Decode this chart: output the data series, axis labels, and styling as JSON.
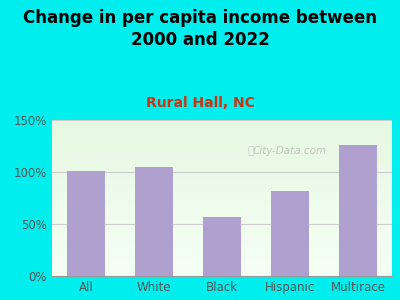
{
  "title": "Change in per capita income between\n2000 and 2022",
  "subtitle": "Rural Hall, NC",
  "categories": [
    "All",
    "White",
    "Black",
    "Hispanic",
    "Multirace"
  ],
  "values": [
    101,
    105,
    57,
    82,
    126
  ],
  "bar_color": "#b0a0d0",
  "title_fontsize": 12,
  "subtitle_fontsize": 10,
  "subtitle_color": "#cc3311",
  "title_color": "#000000",
  "background_color": "#00eeee",
  "ylim": [
    0,
    150
  ],
  "yticks": [
    0,
    50,
    100,
    150
  ],
  "ytick_labels": [
    "0%",
    "50%",
    "100%",
    "150%"
  ],
  "watermark": "City-Data.com",
  "tick_color": "#555555"
}
